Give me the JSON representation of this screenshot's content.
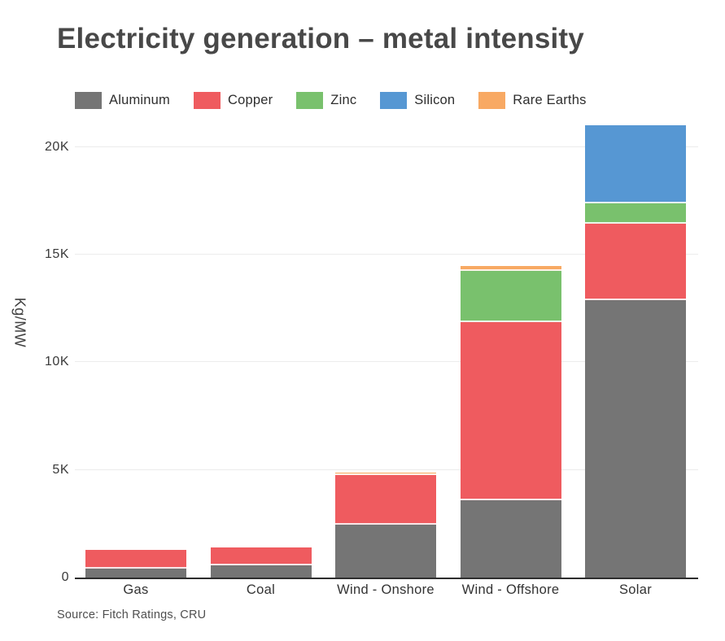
{
  "header": {
    "title": "Electricity generation – metal intensity"
  },
  "footer": {
    "source": "Source: Fitch Ratings, CRU"
  },
  "chart_data": {
    "type": "bar",
    "stacked": true,
    "title": "Electricity generation – metal intensity",
    "ylabel": "Kg/MW",
    "unit": "kg/MW",
    "categories": [
      "Gas",
      "Coal",
      "Wind - Onshore",
      "Wind - Offshore",
      "Solar"
    ],
    "series": [
      {
        "name": "Aluminum",
        "color": "#757575",
        "values": [
          400,
          550,
          2460,
          3590,
          12880
        ]
      },
      {
        "name": "Copper",
        "color": "#ef5b5f",
        "values": [
          880,
          860,
          2300,
          8280,
          3565
        ]
      },
      {
        "name": "Zinc",
        "color": "#79c16d",
        "values": [
          0,
          0,
          0,
          2395,
          945
        ]
      },
      {
        "name": "Silicon",
        "color": "#5697d3",
        "values": [
          0,
          0,
          0,
          0,
          3630
        ]
      },
      {
        "name": "Rare Earths",
        "color": "#f8a963",
        "values": [
          0,
          0,
          115,
          205,
          0
        ]
      }
    ],
    "totals": [
      1280,
      1410,
      4875,
      14470,
      21020
    ],
    "ylim": [
      0,
      21170
    ],
    "yticks": [
      {
        "value": 0,
        "label": "0"
      },
      {
        "value": 5000,
        "label": "5K"
      },
      {
        "value": 10000,
        "label": "10K"
      },
      {
        "value": 15000,
        "label": "15K"
      },
      {
        "value": 20000,
        "label": "20K"
      }
    ],
    "grid": "horizontal",
    "legend_position": "top",
    "source": "Source: Fitch Ratings, CRU"
  }
}
